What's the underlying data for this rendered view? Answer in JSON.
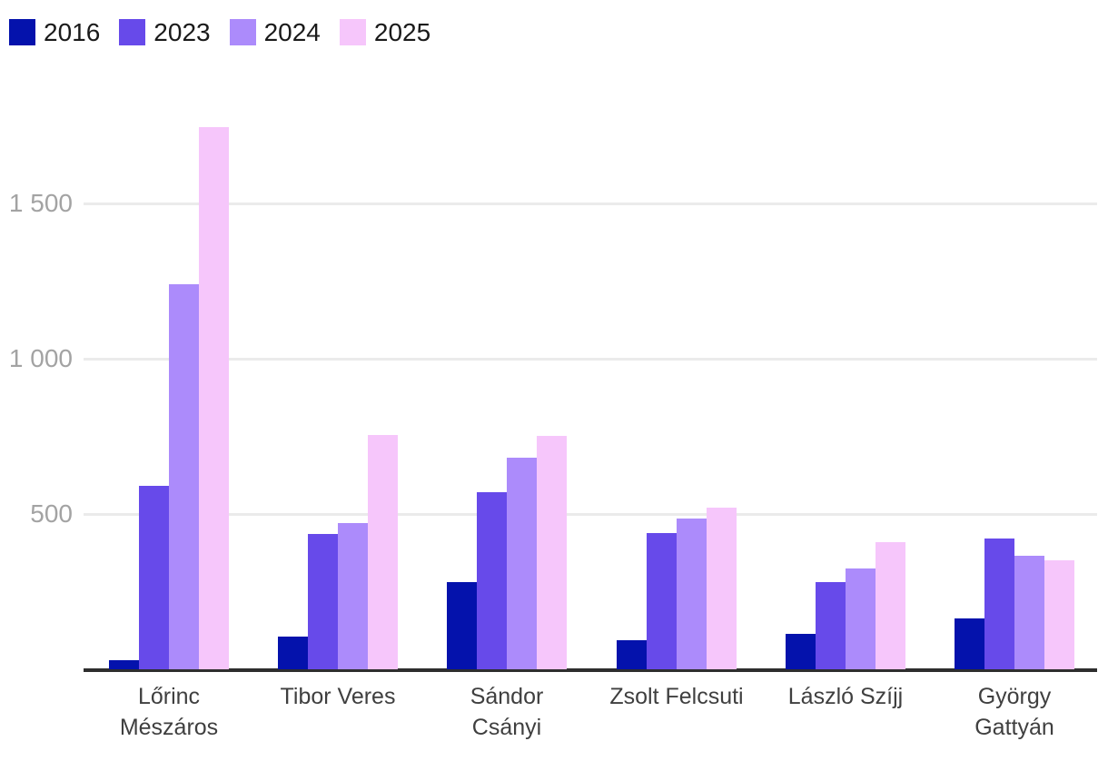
{
  "chart_data": {
    "type": "bar",
    "title": "",
    "xlabel": "",
    "ylabel": "",
    "categories": [
      "Lőrinc Mészáros",
      "Tibor Veres",
      "Sándor Csányi",
      "Zsolt Felcsuti",
      "László Szíjj",
      "György Gattyán"
    ],
    "category_lines": [
      [
        "Lőrinc",
        "Mészáros"
      ],
      [
        "Tibor Veres"
      ],
      [
        "Sándor",
        "Csányi"
      ],
      [
        "Zsolt Felcsuti"
      ],
      [
        "László Szíjj"
      ],
      [
        "György",
        "Gattyán"
      ]
    ],
    "series": [
      {
        "name": "2016",
        "color": "#0412AC",
        "values": [
          30,
          105,
          280,
          95,
          115,
          165
        ]
      },
      {
        "name": "2023",
        "color": "#674AEA",
        "values": [
          590,
          435,
          570,
          440,
          280,
          420
        ]
      },
      {
        "name": "2024",
        "color": "#AC8BFB",
        "values": [
          1240,
          470,
          680,
          485,
          325,
          365
        ]
      },
      {
        "name": "2025",
        "color": "#F6C6FB",
        "values": [
          1745,
          755,
          750,
          520,
          410,
          350
        ]
      }
    ],
    "ylim": [
      0,
      1890
    ],
    "yticks": [
      500,
      1000,
      1500
    ],
    "ytick_labels": [
      "500",
      "1 000",
      "1 500"
    ],
    "grid": "horizontal-lines",
    "legend_position": "top-left"
  },
  "colors": {
    "background": "#FFFFFF",
    "gridline": "#EBEBEB",
    "axis_baseline": "#2E2E2E",
    "tick_label": "#A3A3A3",
    "category_label": "#3F3F3F",
    "legend_label": "#1A1A1A"
  }
}
